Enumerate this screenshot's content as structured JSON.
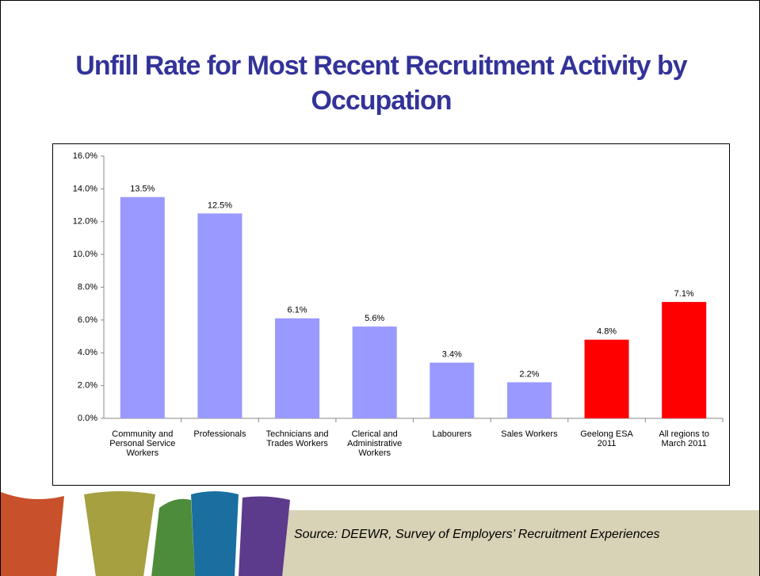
{
  "chart_data": {
    "type": "bar",
    "title": "Unfill Rate for Most Recent Recruitment Activity by Occupation",
    "categories": [
      "Community and Personal Service Workers",
      "Professionals",
      "Technicians and Trades Workers",
      "Clerical and Administrative Workers",
      "Labourers",
      "Sales Workers",
      "Geelong ESA 2011",
      "All regions to March 2011"
    ],
    "values": [
      13.5,
      12.5,
      6.1,
      5.6,
      3.4,
      2.2,
      4.8,
      7.1
    ],
    "value_labels": [
      "13.5%",
      "12.5%",
      "6.1%",
      "5.6%",
      "3.4%",
      "2.2%",
      "4.8%",
      "7.1%"
    ],
    "colors": [
      "#9999ff",
      "#9999ff",
      "#9999ff",
      "#9999ff",
      "#9999ff",
      "#9999ff",
      "#ff0000",
      "#ff0000"
    ],
    "ylim": [
      0,
      16
    ],
    "yticks": [
      {
        "value": 0,
        "label": "0.0%"
      },
      {
        "value": 2,
        "label": "2.0%"
      },
      {
        "value": 4,
        "label": "4.0%"
      },
      {
        "value": 6,
        "label": "6.0%"
      },
      {
        "value": 8,
        "label": "8.0%"
      },
      {
        "value": 10,
        "label": "10.0%"
      },
      {
        "value": 12,
        "label": "12.0%"
      },
      {
        "value": 14,
        "label": "14.0%"
      },
      {
        "value": 16,
        "label": "16.0%"
      }
    ],
    "grid": false
  },
  "source": "Source:  DEEWR, Survey of Employers’ Recruitment Experiences"
}
